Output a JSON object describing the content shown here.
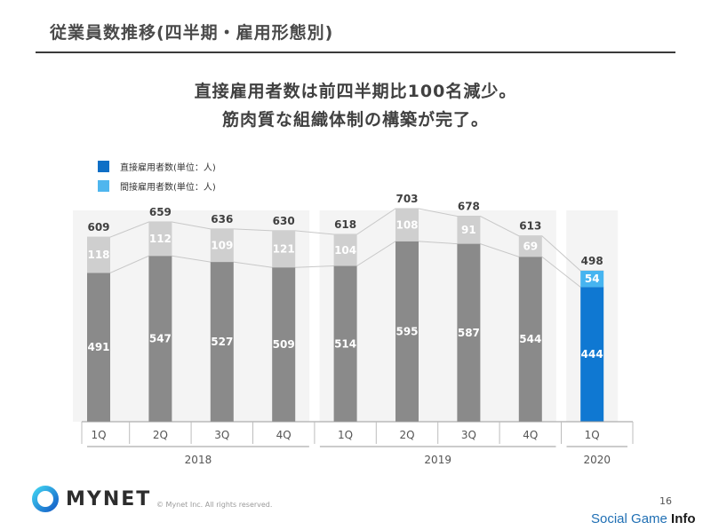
{
  "page": {
    "title": "従業員数推移(四半期・雇用形態別)",
    "headline_line1": "直接雇用者数は前四半期比100名減少。",
    "headline_line2": "筋肉質な組織体制の構築が完了。",
    "brand": "MYNET",
    "copyright": "© Mynet Inc. All rights reserved.",
    "page_number": "16",
    "watermark_part1": "Social Game ",
    "watermark_part2": "Info"
  },
  "colors": {
    "direct": "#8a8a8a",
    "indirect": "#cfcfcf",
    "direct_highlight": "#0f78d2",
    "indirect_highlight": "#46b4f0",
    "legend_direct": "#0f6fc6",
    "legend_indirect": "#4fb6ee"
  },
  "chart_data": {
    "type": "bar",
    "stacked": true,
    "legend": [
      {
        "name": "直接雇用者数(単位：人)"
      },
      {
        "name": "間接雇用者数(単位：人)"
      }
    ],
    "categories": [
      "1Q",
      "2Q",
      "3Q",
      "4Q",
      "1Q",
      "2Q",
      "3Q",
      "4Q",
      "1Q"
    ],
    "year_groups": [
      {
        "label": "2018",
        "start": 0,
        "end": 3
      },
      {
        "label": "2019",
        "start": 4,
        "end": 7
      },
      {
        "label": "2020",
        "start": 8,
        "end": 8
      }
    ],
    "series": [
      {
        "name": "直接雇用者数(単位：人)",
        "values": [
          491,
          547,
          527,
          509,
          514,
          595,
          587,
          544,
          444
        ]
      },
      {
        "name": "間接雇用者数(単位：人)",
        "values": [
          118,
          112,
          109,
          121,
          104,
          108,
          91,
          69,
          54
        ]
      }
    ],
    "totals": [
      609,
      659,
      636,
      630,
      618,
      703,
      678,
      613,
      498
    ],
    "highlight_index": 8,
    "ylim": [
      0,
      703
    ]
  }
}
